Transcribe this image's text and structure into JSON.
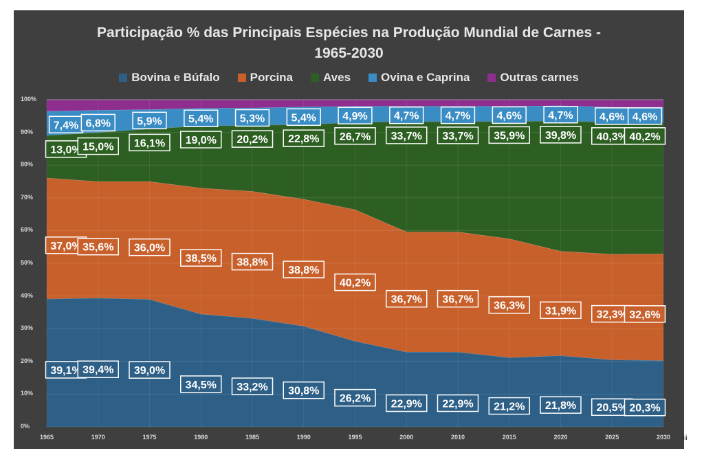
{
  "chart_data": {
    "type": "area",
    "stacked": true,
    "normalized": true,
    "title_line1": "Participação % das Principais Espécies na Produção Mundial de Carnes -",
    "title_line2": "1965-2030",
    "x": [
      "1965",
      "1970",
      "1975",
      "1980",
      "1985",
      "1990",
      "1995",
      "2000",
      "2010",
      "2015",
      "2020",
      "2025",
      "2030"
    ],
    "y_ticks": [
      "0%",
      "10%",
      "20%",
      "30%",
      "40%",
      "50%",
      "60%",
      "70%",
      "80%",
      "90%",
      "100%"
    ],
    "ylim": [
      0,
      100
    ],
    "legend_position": "top",
    "series": [
      {
        "name": "Bovina e Búfalo",
        "color": "#2e5f86",
        "values": [
          39.1,
          39.4,
          39.0,
          34.5,
          33.2,
          30.8,
          26.2,
          22.9,
          22.9,
          21.2,
          21.8,
          20.5,
          20.3
        ],
        "labels": [
          "39,1%",
          "39,4%",
          "39,0%",
          "34,5%",
          "33,2%",
          "30,8%",
          "26,2%",
          "22,9%",
          "22,9%",
          "21,2%",
          "21,8%",
          "20,5%",
          "20,3%"
        ]
      },
      {
        "name": "Porcina",
        "color": "#c8602c",
        "values": [
          37.0,
          35.6,
          36.0,
          38.5,
          38.8,
          38.8,
          40.2,
          36.7,
          36.7,
          36.3,
          31.9,
          32.3,
          32.6
        ],
        "labels": [
          "37,0%",
          "35,6%",
          "36,0%",
          "38,5%",
          "38,8%",
          "38,8%",
          "40,2%",
          "36,7%",
          "36,7%",
          "36,3%",
          "31,9%",
          "32,3%",
          "32,6%"
        ]
      },
      {
        "name": "Aves",
        "color": "#2d5f22",
        "values": [
          13.0,
          15.0,
          16.1,
          19.0,
          20.2,
          22.8,
          26.7,
          33.7,
          33.7,
          35.9,
          39.8,
          40.3,
          40.2
        ],
        "labels": [
          "13,0%",
          "15,0%",
          "16,1%",
          "19,0%",
          "20,2%",
          "22,8%",
          "26,7%",
          "33,7%",
          "33,7%",
          "35,9%",
          "39,8%",
          "40,3%",
          "40,2%"
        ]
      },
      {
        "name": "Ovina e Caprina",
        "color": "#3a8cc4",
        "values": [
          7.4,
          6.8,
          5.9,
          5.4,
          5.3,
          5.4,
          4.9,
          4.7,
          4.7,
          4.6,
          4.7,
          4.6,
          4.6
        ],
        "labels": [
          "7,4%",
          "6,8%",
          "5,9%",
          "5,4%",
          "5,3%",
          "5,4%",
          "4,9%",
          "4,7%",
          "4,7%",
          "4,6%",
          "4,7%",
          "4,6%",
          "4,6%"
        ]
      },
      {
        "name": "Outras carnes",
        "color": "#8e2f8f",
        "values": [
          3.5,
          3.2,
          3.0,
          2.6,
          2.5,
          2.2,
          2.0,
          2.0,
          2.0,
          2.0,
          1.8,
          2.3,
          2.3
        ]
      }
    ]
  },
  "footnote": "iii"
}
